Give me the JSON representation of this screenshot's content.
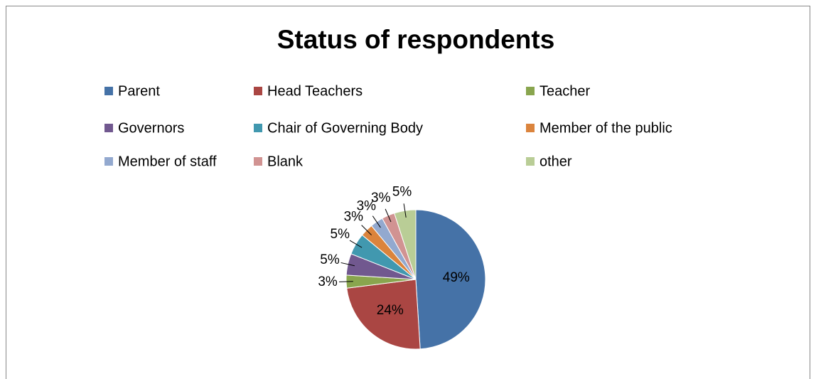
{
  "chart_data": {
    "type": "pie",
    "title": "Status of respondents",
    "categories": [
      "Parent",
      "Head Teachers",
      "Teacher",
      "Governors",
      "Chair of Governing Body",
      "Member of the public",
      "Member of staff",
      "Blank",
      "other"
    ],
    "values": [
      49,
      24,
      3,
      5,
      5,
      3,
      3,
      3,
      5
    ],
    "value_labels": [
      "49%",
      "24%",
      "3%",
      "5%",
      "5%",
      "3%",
      "3%",
      "3%",
      "5%"
    ],
    "colors": [
      "#4572a7",
      "#aa4643",
      "#89a54e",
      "#71588f",
      "#4198af",
      "#db843d",
      "#93a9cf",
      "#d19392",
      "#b9cd96"
    ],
    "legend": "top"
  }
}
